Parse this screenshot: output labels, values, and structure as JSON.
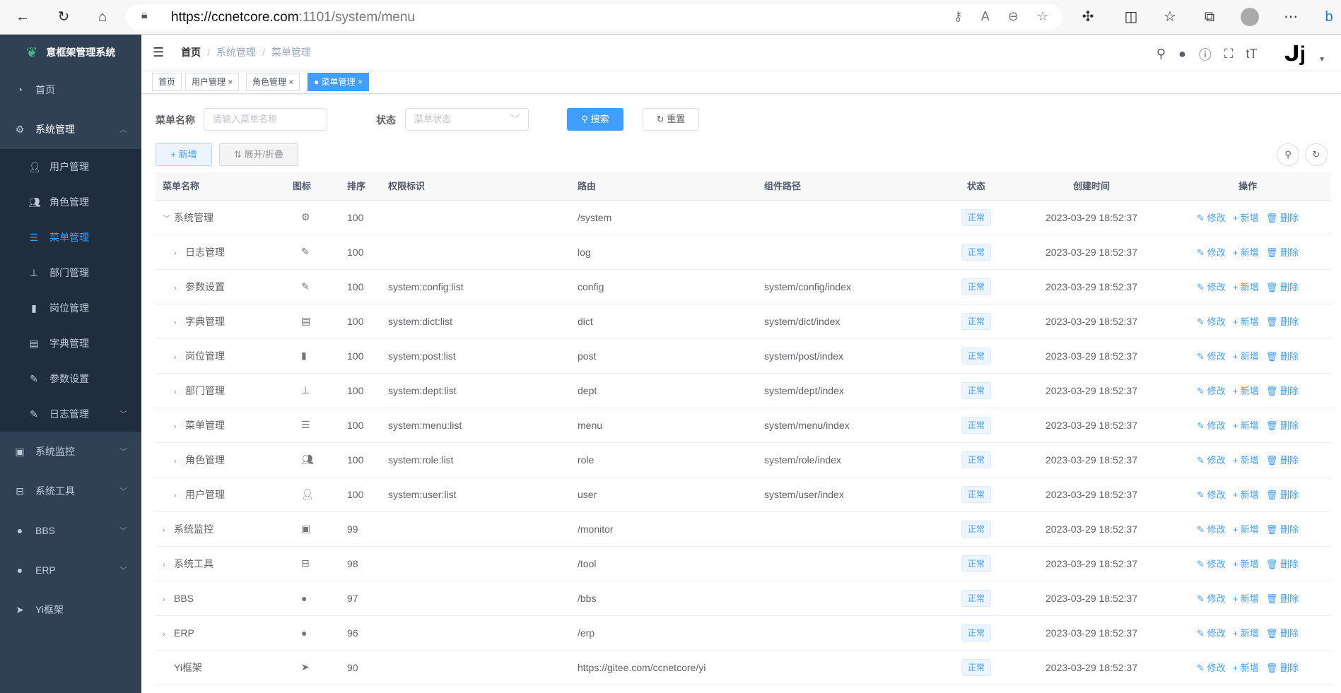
{
  "browser": {
    "url_host": "https://ccnetcore.com",
    "url_rest": ":1101/system/menu"
  },
  "sidebar": {
    "title": "意框架管理系统",
    "items": [
      {
        "label": "首页",
        "icon": "dashboard-icon"
      },
      {
        "label": "系统管理",
        "icon": "gear-icon",
        "expanded": true,
        "children": [
          {
            "label": "用户管理",
            "icon": "user-icon"
          },
          {
            "label": "角色管理",
            "icon": "peoples-icon"
          },
          {
            "label": "菜单管理",
            "icon": "tree-table-icon",
            "active": true
          },
          {
            "label": "部门管理",
            "icon": "tree-icon"
          },
          {
            "label": "岗位管理",
            "icon": "post-icon"
          },
          {
            "label": "字典管理",
            "icon": "dict-icon"
          },
          {
            "label": "参数设置",
            "icon": "edit-icon"
          },
          {
            "label": "日志管理",
            "icon": "log-icon"
          }
        ]
      },
      {
        "label": "系统监控",
        "icon": "monitor-icon"
      },
      {
        "label": "系统工具",
        "icon": "tool-icon"
      },
      {
        "label": "BBS",
        "icon": "globe-icon"
      },
      {
        "label": "ERP",
        "icon": "globe-icon"
      },
      {
        "label": "Yi框架",
        "icon": "send-icon"
      }
    ]
  },
  "breadcrumb": [
    "首页",
    "系统管理",
    "菜单管理"
  ],
  "tags": [
    {
      "label": "首页"
    },
    {
      "label": "用户管理"
    },
    {
      "label": "角色管理"
    },
    {
      "label": "菜单管理",
      "active": true
    }
  ],
  "search": {
    "name_label": "菜单名称",
    "name_placeholder": "请输入菜单名称",
    "status_label": "状态",
    "status_placeholder": "菜单状态",
    "search_btn": "搜索",
    "reset_btn": "重置"
  },
  "toolbar": {
    "add": "新增",
    "expand": "展开/折叠"
  },
  "table": {
    "headers": [
      "菜单名称",
      "图标",
      "排序",
      "权限标识",
      "路由",
      "组件路径",
      "状态",
      "创建时间",
      "操作"
    ],
    "actions": [
      "修改",
      "新增",
      "删除"
    ],
    "rows": [
      {
        "name": "系统管理",
        "level": 0,
        "arrow": "down",
        "icon": "gear-icon",
        "order": "100",
        "perms": "",
        "route": "/system",
        "component": "",
        "status": "正常",
        "created": "2023-03-29 18:52:37"
      },
      {
        "name": "日志管理",
        "level": 1,
        "arrow": "right",
        "icon": "log-icon",
        "order": "100",
        "perms": "",
        "route": "log",
        "component": "",
        "status": "正常",
        "created": "2023-03-29 18:52:37"
      },
      {
        "name": "参数设置",
        "level": 1,
        "arrow": "right",
        "icon": "edit-icon",
        "order": "100",
        "perms": "system:config:list",
        "route": "config",
        "component": "system/config/index",
        "status": "正常",
        "created": "2023-03-29 18:52:37"
      },
      {
        "name": "字典管理",
        "level": 1,
        "arrow": "right",
        "icon": "dict-icon",
        "order": "100",
        "perms": "system:dict:list",
        "route": "dict",
        "component": "system/dict/index",
        "status": "正常",
        "created": "2023-03-29 18:52:37"
      },
      {
        "name": "岗位管理",
        "level": 1,
        "arrow": "right",
        "icon": "post-icon",
        "order": "100",
        "perms": "system:post:list",
        "route": "post",
        "component": "system/post/index",
        "status": "正常",
        "created": "2023-03-29 18:52:37"
      },
      {
        "name": "部门管理",
        "level": 1,
        "arrow": "right",
        "icon": "tree-icon",
        "order": "100",
        "perms": "system:dept:list",
        "route": "dept",
        "component": "system/dept/index",
        "status": "正常",
        "created": "2023-03-29 18:52:37"
      },
      {
        "name": "菜单管理",
        "level": 1,
        "arrow": "right",
        "icon": "tree-table-icon",
        "order": "100",
        "perms": "system:menu:list",
        "route": "menu",
        "component": "system/menu/index",
        "status": "正常",
        "created": "2023-03-29 18:52:37"
      },
      {
        "name": "角色管理",
        "level": 1,
        "arrow": "right",
        "icon": "peoples-icon",
        "order": "100",
        "perms": "system:role:list",
        "route": "role",
        "component": "system/role/index",
        "status": "正常",
        "created": "2023-03-29 18:52:37"
      },
      {
        "name": "用户管理",
        "level": 1,
        "arrow": "right",
        "icon": "user-icon",
        "order": "100",
        "perms": "system:user:list",
        "route": "user",
        "component": "system/user/index",
        "status": "正常",
        "created": "2023-03-29 18:52:37"
      },
      {
        "name": "系统监控",
        "level": 0,
        "arrow": "right",
        "icon": "monitor-icon",
        "order": "99",
        "perms": "",
        "route": "/monitor",
        "component": "",
        "status": "正常",
        "created": "2023-03-29 18:52:37"
      },
      {
        "name": "系统工具",
        "level": 0,
        "arrow": "right",
        "icon": "tool-icon",
        "order": "98",
        "perms": "",
        "route": "/tool",
        "component": "",
        "status": "正常",
        "created": "2023-03-29 18:52:37"
      },
      {
        "name": "BBS",
        "level": 0,
        "arrow": "right",
        "icon": "globe-icon",
        "order": "97",
        "perms": "",
        "route": "/bbs",
        "component": "",
        "status": "正常",
        "created": "2023-03-29 18:52:37"
      },
      {
        "name": "ERP",
        "level": 0,
        "arrow": "right",
        "icon": "globe-icon",
        "order": "96",
        "perms": "",
        "route": "/erp",
        "component": "",
        "status": "正常",
        "created": "2023-03-29 18:52:37"
      },
      {
        "name": "Yi框架",
        "level": 0,
        "arrow": "",
        "icon": "send-icon",
        "order": "90",
        "perms": "",
        "route": "https://gitee.com/ccnetcore/yi",
        "component": "",
        "status": "正常",
        "created": "2023-03-29 18:52:37"
      }
    ]
  },
  "colors": {
    "primary": "#409eff",
    "sidebar": "#304156",
    "submenu": "#1f2d3d"
  }
}
